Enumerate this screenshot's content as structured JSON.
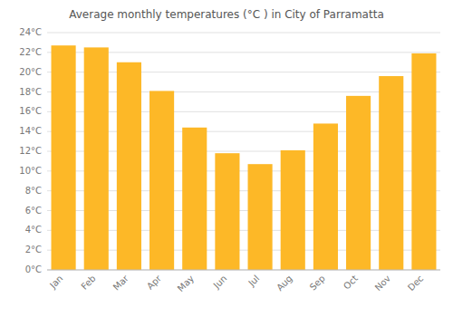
{
  "chart_data": {
    "type": "bar",
    "title": "Average monthly temperatures (°C ) in City of Parramatta",
    "categories": [
      "Jan",
      "Feb",
      "Mar",
      "Apr",
      "May",
      "Jun",
      "Jul",
      "Aug",
      "Sep",
      "Oct",
      "Nov",
      "Dec"
    ],
    "values": [
      22.7,
      22.5,
      21.0,
      18.1,
      14.4,
      11.8,
      10.7,
      12.1,
      14.8,
      17.6,
      19.6,
      21.9
    ],
    "color": "#FDB827",
    "ylim": [
      0,
      24
    ],
    "yticks": [
      {
        "value": 0,
        "label": "0°C"
      },
      {
        "value": 2,
        "label": "2°C"
      },
      {
        "value": 4,
        "label": "4°C"
      },
      {
        "value": 6,
        "label": "6°C"
      },
      {
        "value": 8,
        "label": "8°C"
      },
      {
        "value": 10,
        "label": "10°C"
      },
      {
        "value": 12,
        "label": "12°C"
      },
      {
        "value": 14,
        "label": "14°C"
      },
      {
        "value": 16,
        "label": "16°C"
      },
      {
        "value": 18,
        "label": "18°C"
      },
      {
        "value": 20,
        "label": "20°C"
      },
      {
        "value": 22,
        "label": "22°C"
      },
      {
        "value": 24,
        "label": "24°C"
      }
    ],
    "grid": true
  }
}
